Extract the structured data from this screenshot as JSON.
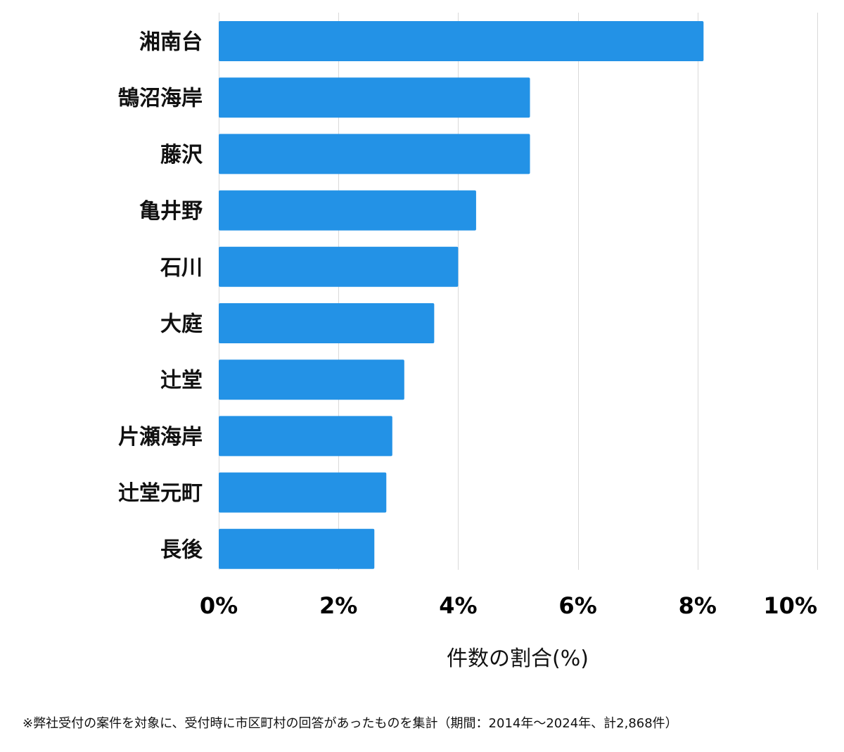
{
  "chart_data": {
    "type": "bar",
    "orientation": "horizontal",
    "categories": [
      "湘南台",
      "鵠沼海岸",
      "藤沢",
      "亀井野",
      "石川",
      "大庭",
      "辻堂",
      "片瀬海岸",
      "辻堂元町",
      "長後"
    ],
    "values": [
      8.1,
      5.2,
      5.2,
      4.3,
      4.0,
      3.6,
      3.1,
      2.9,
      2.8,
      2.6
    ],
    "xlim": [
      0,
      10
    ],
    "xticks": [
      0,
      2,
      4,
      6,
      8,
      10
    ],
    "xtick_labels": [
      "0%",
      "2%",
      "4%",
      "6%",
      "8%",
      "10%"
    ],
    "xlabel": "件数の割合(%)",
    "ylabel": "",
    "grid": "vertical",
    "bar_color": "#2392e6",
    "footnote": "※弊社受付の案件を対象に、受付時に市区町村の回答があったものを集計（期間：2014年～2024年、計2,868件）"
  }
}
